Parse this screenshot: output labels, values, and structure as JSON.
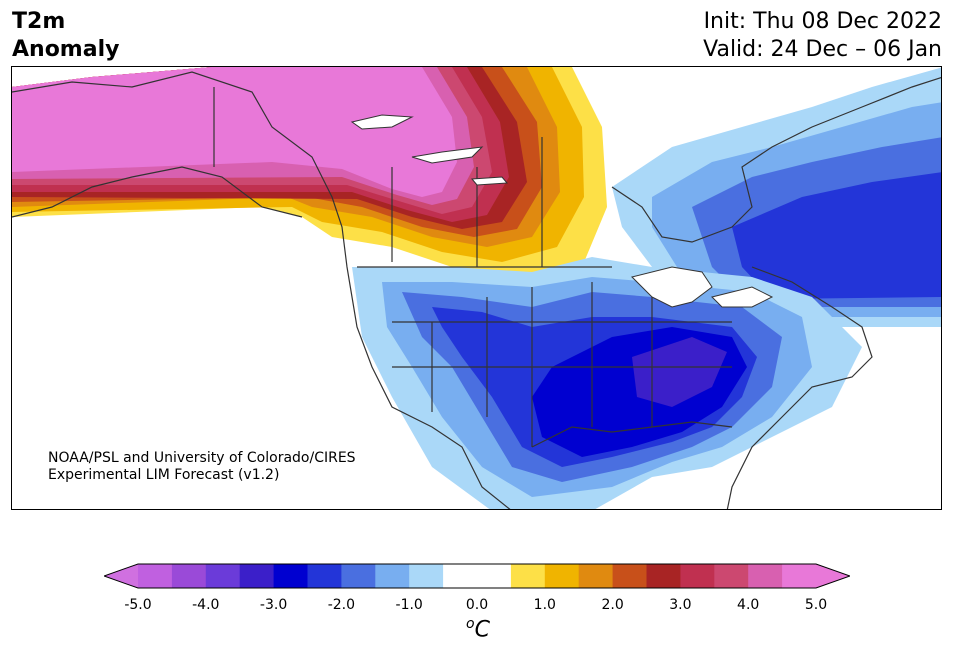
{
  "header": {
    "title_line1": "T2m",
    "title_line2": "Anomaly",
    "init": "Init: Thu 08 Dec 2022",
    "valid": "Valid: 24 Dec – 06 Jan"
  },
  "credit": {
    "line1": "NOAA/PSL and University of Colorado/CIRES",
    "line2": "Experimental LIM Forecast (v1.2)"
  },
  "colorbar": {
    "unit": "C",
    "unit_superscript": "o",
    "ticks": [
      "-5.0",
      "-4.0",
      "-3.0",
      "-2.0",
      "-1.0",
      "0.0",
      "1.0",
      "2.0",
      "3.0",
      "4.0",
      "5.0"
    ],
    "colors": [
      "#c060e0",
      "#9a4ad8",
      "#6b3bd9",
      "#3b1fc9",
      "#0000d0",
      "#2335d8",
      "#4a6fe0",
      "#78aef0",
      "#aad8f8",
      "#ffffff",
      "#ffffff",
      "#fde047",
      "#f0b400",
      "#e08a10",
      "#c8501a",
      "#a82424",
      "#c03050",
      "#cc4870",
      "#d860b0",
      "#e878d8"
    ],
    "under_color": "#d070e0",
    "over_color": "#e878d8"
  },
  "map": {
    "region": "North America",
    "features": [
      "warm-anomaly-northwest-canada-alaska",
      "cold-anomaly-central-eastern-us",
      "cold-anomaly-eastern-canada"
    ]
  }
}
